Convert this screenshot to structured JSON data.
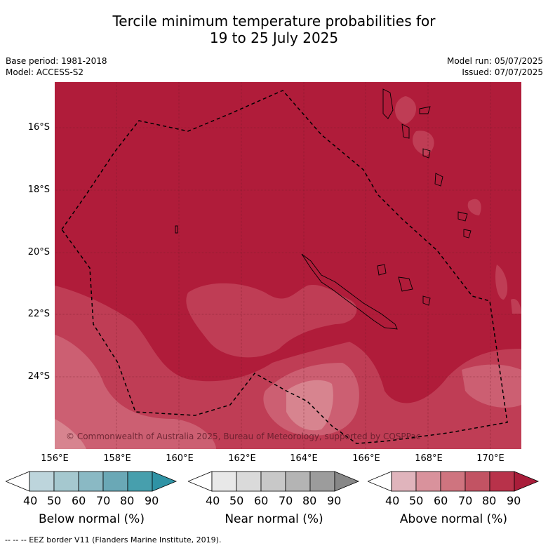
{
  "title_line1": "Tercile minimum temperature probabilities for",
  "title_line2": "19 to 25 July 2025",
  "meta": {
    "base_period": "Base period: 1981-2018",
    "model": "Model: ACCESS-S2",
    "model_run": "Model run: 05/07/2025",
    "issued": "Issued: 07/07/2025"
  },
  "axes": {
    "lat_labels": [
      "16°S",
      "18°S",
      "20°S",
      "22°S",
      "24°S"
    ],
    "lon_labels": [
      "156°E",
      "158°E",
      "160°E",
      "162°E",
      "164°E",
      "166°E",
      "168°E",
      "170°E"
    ]
  },
  "copyright": "© Commonwealth of Australia 2025, Bureau of Meteorology, supported by COSPPac",
  "colorbars": [
    {
      "title": "Below normal (%)",
      "ticks": [
        "40",
        "50",
        "60",
        "70",
        "80",
        "90"
      ],
      "colors": [
        "#bdd5dc",
        "#a5c8cf",
        "#8ab9c4",
        "#6aa8b6",
        "#479fad",
        "#2f93a5"
      ]
    },
    {
      "title": "Near normal (%)",
      "ticks": [
        "40",
        "50",
        "60",
        "70",
        "80",
        "90"
      ],
      "colors": [
        "#e8e8e8",
        "#dadada",
        "#c8c8c8",
        "#b4b4b4",
        "#9c9c9c",
        "#878787"
      ]
    },
    {
      "title": "Above normal (%)",
      "ticks": [
        "40",
        "50",
        "60",
        "70",
        "80",
        "90"
      ],
      "colors": [
        "#e0b4bc",
        "#d9929c",
        "#cf747f",
        "#c25363",
        "#b8324a",
        "#a91d3a"
      ]
    }
  ],
  "footer": "--  --  -- EEZ border V11 (Flanders Marine Institute, 2019).",
  "colors": {
    "above_80": "#b01c3a",
    "above_70": "#bf3d55",
    "above_60": "#cc5f72",
    "above_50": "#d7848f"
  }
}
